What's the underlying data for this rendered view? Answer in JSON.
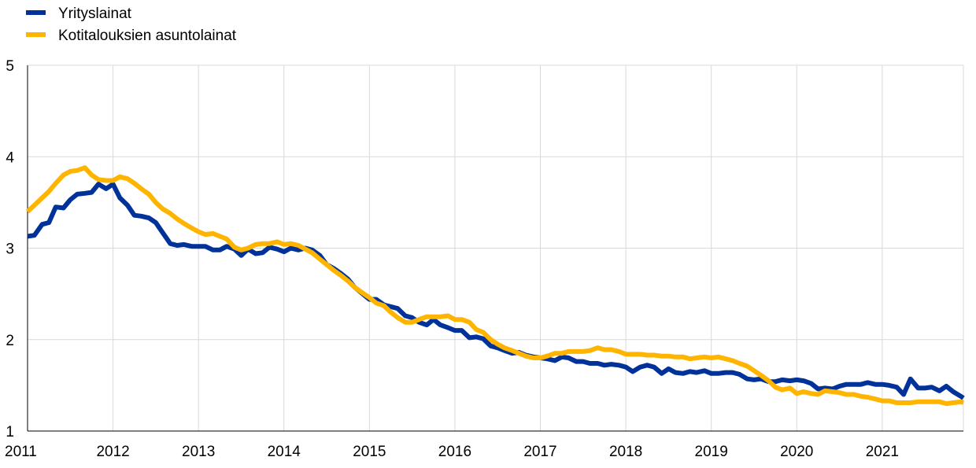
{
  "chart_data": {
    "type": "line",
    "title": "",
    "xlabel": "",
    "ylabel": "",
    "xlim": [
      2011.0,
      2021.95
    ],
    "ylim": [
      1,
      5
    ],
    "grid": true,
    "legend_position": "top-left",
    "x_ticks": [
      "2011",
      "2012",
      "2013",
      "2014",
      "2015",
      "2016",
      "2017",
      "2018",
      "2019",
      "2020",
      "2021"
    ],
    "y_ticks": [
      "1",
      "2",
      "3",
      "4",
      "5"
    ],
    "series": [
      {
        "name": "Yrityslainat",
        "color": "#003299",
        "points": [
          [
            2011.0,
            3.13
          ],
          [
            2011.08,
            3.14
          ],
          [
            2011.17,
            3.26
          ],
          [
            2011.25,
            3.28
          ],
          [
            2011.33,
            3.45
          ],
          [
            2011.42,
            3.44
          ],
          [
            2011.5,
            3.53
          ],
          [
            2011.58,
            3.59
          ],
          [
            2011.67,
            3.6
          ],
          [
            2011.75,
            3.61
          ],
          [
            2011.83,
            3.7
          ],
          [
            2011.92,
            3.65
          ],
          [
            2012.0,
            3.7
          ],
          [
            2012.08,
            3.55
          ],
          [
            2012.17,
            3.47
          ],
          [
            2012.25,
            3.36
          ],
          [
            2012.33,
            3.35
          ],
          [
            2012.42,
            3.33
          ],
          [
            2012.5,
            3.28
          ],
          [
            2012.58,
            3.17
          ],
          [
            2012.67,
            3.05
          ],
          [
            2012.75,
            3.03
          ],
          [
            2012.83,
            3.04
          ],
          [
            2012.92,
            3.02
          ],
          [
            2013.0,
            3.02
          ],
          [
            2013.08,
            3.02
          ],
          [
            2013.17,
            2.98
          ],
          [
            2013.25,
            2.98
          ],
          [
            2013.33,
            3.02
          ],
          [
            2013.42,
            2.99
          ],
          [
            2013.5,
            2.92
          ],
          [
            2013.58,
            2.99
          ],
          [
            2013.67,
            2.94
          ],
          [
            2013.75,
            2.95
          ],
          [
            2013.83,
            3.01
          ],
          [
            2013.92,
            2.99
          ],
          [
            2014.0,
            2.96
          ],
          [
            2014.08,
            3.0
          ],
          [
            2014.17,
            2.98
          ],
          [
            2014.25,
            3.0
          ],
          [
            2014.33,
            2.98
          ],
          [
            2014.42,
            2.92
          ],
          [
            2014.5,
            2.82
          ],
          [
            2014.58,
            2.78
          ],
          [
            2014.67,
            2.72
          ],
          [
            2014.75,
            2.66
          ],
          [
            2014.83,
            2.57
          ],
          [
            2014.92,
            2.5
          ],
          [
            2015.0,
            2.44
          ],
          [
            2015.08,
            2.44
          ],
          [
            2015.17,
            2.38
          ],
          [
            2015.25,
            2.36
          ],
          [
            2015.33,
            2.34
          ],
          [
            2015.42,
            2.26
          ],
          [
            2015.5,
            2.24
          ],
          [
            2015.58,
            2.19
          ],
          [
            2015.67,
            2.16
          ],
          [
            2015.75,
            2.22
          ],
          [
            2015.83,
            2.16
          ],
          [
            2015.92,
            2.13
          ],
          [
            2016.0,
            2.1
          ],
          [
            2016.08,
            2.1
          ],
          [
            2016.17,
            2.02
          ],
          [
            2016.25,
            2.03
          ],
          [
            2016.33,
            2.01
          ],
          [
            2016.42,
            1.93
          ],
          [
            2016.5,
            1.91
          ],
          [
            2016.58,
            1.88
          ],
          [
            2016.67,
            1.85
          ],
          [
            2016.75,
            1.86
          ],
          [
            2016.83,
            1.83
          ],
          [
            2016.92,
            1.81
          ],
          [
            2017.0,
            1.8
          ],
          [
            2017.08,
            1.79
          ],
          [
            2017.17,
            1.77
          ],
          [
            2017.25,
            1.81
          ],
          [
            2017.33,
            1.8
          ],
          [
            2017.42,
            1.76
          ],
          [
            2017.5,
            1.76
          ],
          [
            2017.58,
            1.74
          ],
          [
            2017.67,
            1.74
          ],
          [
            2017.75,
            1.72
          ],
          [
            2017.83,
            1.73
          ],
          [
            2017.92,
            1.72
          ],
          [
            2018.0,
            1.7
          ],
          [
            2018.08,
            1.65
          ],
          [
            2018.17,
            1.7
          ],
          [
            2018.25,
            1.72
          ],
          [
            2018.33,
            1.7
          ],
          [
            2018.42,
            1.63
          ],
          [
            2018.5,
            1.68
          ],
          [
            2018.58,
            1.64
          ],
          [
            2018.67,
            1.63
          ],
          [
            2018.75,
            1.65
          ],
          [
            2018.83,
            1.64
          ],
          [
            2018.92,
            1.66
          ],
          [
            2019.0,
            1.63
          ],
          [
            2019.08,
            1.63
          ],
          [
            2019.17,
            1.64
          ],
          [
            2019.25,
            1.64
          ],
          [
            2019.33,
            1.62
          ],
          [
            2019.42,
            1.57
          ],
          [
            2019.5,
            1.56
          ],
          [
            2019.58,
            1.57
          ],
          [
            2019.67,
            1.54
          ],
          [
            2019.75,
            1.54
          ],
          [
            2019.83,
            1.56
          ],
          [
            2019.92,
            1.55
          ],
          [
            2020.0,
            1.56
          ],
          [
            2020.08,
            1.55
          ],
          [
            2020.17,
            1.52
          ],
          [
            2020.25,
            1.46
          ],
          [
            2020.33,
            1.47
          ],
          [
            2020.42,
            1.46
          ],
          [
            2020.5,
            1.49
          ],
          [
            2020.58,
            1.51
          ],
          [
            2020.67,
            1.51
          ],
          [
            2020.75,
            1.51
          ],
          [
            2020.83,
            1.53
          ],
          [
            2020.92,
            1.51
          ],
          [
            2021.0,
            1.51
          ],
          [
            2021.08,
            1.5
          ],
          [
            2021.17,
            1.48
          ],
          [
            2021.25,
            1.4
          ],
          [
            2021.33,
            1.57
          ],
          [
            2021.42,
            1.47
          ],
          [
            2021.5,
            1.47
          ],
          [
            2021.58,
            1.48
          ],
          [
            2021.67,
            1.44
          ],
          [
            2021.75,
            1.49
          ],
          [
            2021.83,
            1.43
          ],
          [
            2021.92,
            1.38
          ],
          [
            2021.95,
            1.36
          ]
        ]
      },
      {
        "name": "Kotitalouksien asuntolainat",
        "color": "#FFB400",
        "points": [
          [
            2011.0,
            3.4
          ],
          [
            2011.08,
            3.47
          ],
          [
            2011.17,
            3.55
          ],
          [
            2011.25,
            3.62
          ],
          [
            2011.33,
            3.71
          ],
          [
            2011.42,
            3.8
          ],
          [
            2011.5,
            3.84
          ],
          [
            2011.58,
            3.85
          ],
          [
            2011.67,
            3.88
          ],
          [
            2011.75,
            3.8
          ],
          [
            2011.83,
            3.75
          ],
          [
            2011.92,
            3.74
          ],
          [
            2012.0,
            3.74
          ],
          [
            2012.08,
            3.78
          ],
          [
            2012.17,
            3.76
          ],
          [
            2012.25,
            3.71
          ],
          [
            2012.33,
            3.65
          ],
          [
            2012.42,
            3.59
          ],
          [
            2012.5,
            3.5
          ],
          [
            2012.58,
            3.43
          ],
          [
            2012.67,
            3.38
          ],
          [
            2012.75,
            3.32
          ],
          [
            2012.83,
            3.27
          ],
          [
            2012.92,
            3.22
          ],
          [
            2013.0,
            3.18
          ],
          [
            2013.08,
            3.15
          ],
          [
            2013.17,
            3.16
          ],
          [
            2013.25,
            3.13
          ],
          [
            2013.33,
            3.1
          ],
          [
            2013.42,
            3.01
          ],
          [
            2013.5,
            2.98
          ],
          [
            2013.58,
            3.0
          ],
          [
            2013.67,
            3.04
          ],
          [
            2013.75,
            3.05
          ],
          [
            2013.83,
            3.05
          ],
          [
            2013.92,
            3.07
          ],
          [
            2014.0,
            3.04
          ],
          [
            2014.08,
            3.05
          ],
          [
            2014.17,
            3.03
          ],
          [
            2014.25,
            2.99
          ],
          [
            2014.33,
            2.95
          ],
          [
            2014.42,
            2.88
          ],
          [
            2014.5,
            2.82
          ],
          [
            2014.58,
            2.76
          ],
          [
            2014.67,
            2.7
          ],
          [
            2014.75,
            2.64
          ],
          [
            2014.83,
            2.57
          ],
          [
            2014.92,
            2.51
          ],
          [
            2015.0,
            2.46
          ],
          [
            2015.08,
            2.4
          ],
          [
            2015.17,
            2.37
          ],
          [
            2015.25,
            2.3
          ],
          [
            2015.33,
            2.24
          ],
          [
            2015.42,
            2.19
          ],
          [
            2015.5,
            2.19
          ],
          [
            2015.58,
            2.22
          ],
          [
            2015.67,
            2.25
          ],
          [
            2015.75,
            2.25
          ],
          [
            2015.83,
            2.25
          ],
          [
            2015.92,
            2.26
          ],
          [
            2016.0,
            2.22
          ],
          [
            2016.08,
            2.22
          ],
          [
            2016.17,
            2.19
          ],
          [
            2016.25,
            2.11
          ],
          [
            2016.33,
            2.08
          ],
          [
            2016.42,
            2.0
          ],
          [
            2016.5,
            1.95
          ],
          [
            2016.58,
            1.91
          ],
          [
            2016.67,
            1.88
          ],
          [
            2016.75,
            1.85
          ],
          [
            2016.83,
            1.82
          ],
          [
            2016.92,
            1.8
          ],
          [
            2017.0,
            1.8
          ],
          [
            2017.08,
            1.82
          ],
          [
            2017.17,
            1.85
          ],
          [
            2017.25,
            1.85
          ],
          [
            2017.33,
            1.87
          ],
          [
            2017.42,
            1.87
          ],
          [
            2017.5,
            1.87
          ],
          [
            2017.58,
            1.88
          ],
          [
            2017.67,
            1.91
          ],
          [
            2017.75,
            1.89
          ],
          [
            2017.83,
            1.89
          ],
          [
            2017.92,
            1.87
          ],
          [
            2018.0,
            1.84
          ],
          [
            2018.08,
            1.84
          ],
          [
            2018.17,
            1.84
          ],
          [
            2018.25,
            1.83
          ],
          [
            2018.33,
            1.83
          ],
          [
            2018.42,
            1.82
          ],
          [
            2018.5,
            1.82
          ],
          [
            2018.58,
            1.81
          ],
          [
            2018.67,
            1.81
          ],
          [
            2018.75,
            1.79
          ],
          [
            2018.83,
            1.8
          ],
          [
            2018.92,
            1.81
          ],
          [
            2019.0,
            1.8
          ],
          [
            2019.08,
            1.81
          ],
          [
            2019.17,
            1.79
          ],
          [
            2019.25,
            1.77
          ],
          [
            2019.33,
            1.74
          ],
          [
            2019.42,
            1.71
          ],
          [
            2019.5,
            1.66
          ],
          [
            2019.58,
            1.61
          ],
          [
            2019.67,
            1.55
          ],
          [
            2019.75,
            1.48
          ],
          [
            2019.83,
            1.45
          ],
          [
            2019.92,
            1.47
          ],
          [
            2020.0,
            1.41
          ],
          [
            2020.08,
            1.43
          ],
          [
            2020.17,
            1.41
          ],
          [
            2020.25,
            1.4
          ],
          [
            2020.33,
            1.44
          ],
          [
            2020.42,
            1.43
          ],
          [
            2020.5,
            1.42
          ],
          [
            2020.58,
            1.4
          ],
          [
            2020.67,
            1.4
          ],
          [
            2020.75,
            1.38
          ],
          [
            2020.83,
            1.37
          ],
          [
            2020.92,
            1.35
          ],
          [
            2021.0,
            1.33
          ],
          [
            2021.08,
            1.33
          ],
          [
            2021.17,
            1.31
          ],
          [
            2021.25,
            1.31
          ],
          [
            2021.33,
            1.31
          ],
          [
            2021.42,
            1.32
          ],
          [
            2021.5,
            1.32
          ],
          [
            2021.58,
            1.32
          ],
          [
            2021.67,
            1.32
          ],
          [
            2021.75,
            1.3
          ],
          [
            2021.83,
            1.31
          ],
          [
            2021.92,
            1.32
          ],
          [
            2021.95,
            1.31
          ]
        ]
      }
    ]
  }
}
